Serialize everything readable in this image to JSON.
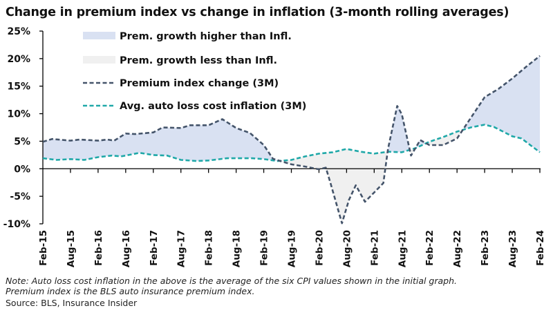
{
  "title": "Change in premium index vs change in inflation (3-month rolling averages)",
  "note": "Note: Auto loss cost inflation in the above is the average of the six CPI values shown in the initial graph. Premium index is the BLS auto insurance premium index.",
  "source": "Source: BLS, Insurance Insider",
  "colors": {
    "premium_line": "#44546a",
    "inflation_line": "#1fa8a8",
    "area_higher": "#d9e1f2",
    "area_lower": "#f0f0f0",
    "axis": "#000000"
  },
  "chart_data": {
    "type": "line",
    "title": "Change in premium index vs change in inflation (3-month rolling averages)",
    "xlabel": "",
    "ylabel": "",
    "ylim": [
      -10,
      25
    ],
    "yticks": [
      25,
      20,
      15,
      10,
      5,
      0,
      -5,
      -10
    ],
    "ytick_labels": [
      "25%",
      "20%",
      "15%",
      "10%",
      "5%",
      "0%",
      "-5%",
      "-10%"
    ],
    "xlim_months": [
      0,
      108
    ],
    "xtick_labels": [
      "Feb-15",
      "Aug-15",
      "Feb-16",
      "Aug-16",
      "Feb-17",
      "Aug-17",
      "Feb-18",
      "Aug-18",
      "Feb-19",
      "Aug-19",
      "Feb-20",
      "Aug-20",
      "Feb-21",
      "Aug-21",
      "Feb-22",
      "Aug-22",
      "Feb-23",
      "Aug-23",
      "Feb-24"
    ],
    "xtick_months": [
      0,
      6,
      12,
      18,
      24,
      30,
      36,
      42,
      48,
      54,
      60,
      66,
      72,
      78,
      84,
      90,
      96,
      102,
      108
    ],
    "grid": false,
    "legend": {
      "position": "top-left",
      "entries": [
        {
          "label": "Prem. growth higher than Infl.",
          "kind": "area",
          "key": "higher"
        },
        {
          "label": "Prem. growth less than Infl.",
          "kind": "area",
          "key": "lower"
        },
        {
          "label": "Premium index change (3M)",
          "kind": "dashed-line",
          "key": "premium"
        },
        {
          "label": "Avg. auto loss cost inflation (3M)",
          "kind": "dashed-line",
          "key": "inflation"
        }
      ]
    },
    "series": [
      {
        "name": "Premium index change (3M)",
        "key": "premium",
        "x_months": [
          0,
          2,
          6,
          8,
          12,
          14,
          15.5,
          18,
          20,
          24,
          26,
          30,
          32,
          36,
          39,
          42,
          45,
          48,
          50,
          54,
          57,
          60,
          61.5,
          62.5,
          65,
          66.5,
          68,
          70,
          72,
          74,
          75,
          77,
          78,
          80,
          82,
          84,
          87,
          90,
          92,
          96,
          99,
          102,
          105,
          108
        ],
        "values": [
          4.9,
          5.4,
          5.1,
          5.3,
          5.1,
          5.3,
          5.1,
          6.4,
          6.3,
          6.6,
          7.5,
          7.4,
          7.9,
          7.9,
          9.0,
          7.4,
          6.5,
          4.3,
          1.8,
          0.8,
          0.4,
          -0.1,
          0.2,
          -2.6,
          -9.9,
          -5.7,
          -3.0,
          -6.0,
          -4.3,
          -2.6,
          3.6,
          11.4,
          9.9,
          2.4,
          5.2,
          4.3,
          4.3,
          5.5,
          8.0,
          13.0,
          14.5,
          16.4,
          18.5,
          20.5
        ]
      },
      {
        "name": "Avg. auto loss cost inflation (3M)",
        "key": "inflation",
        "x_months": [
          0,
          3,
          6,
          9,
          12,
          15,
          17,
          18,
          21,
          24,
          27,
          30,
          33.5,
          36,
          40,
          42,
          45.5,
          48,
          51,
          54,
          57,
          60,
          63,
          66,
          69,
          72,
          75,
          78,
          81,
          84,
          87,
          90,
          93,
          96,
          98,
          102,
          104,
          106,
          108
        ],
        "values": [
          1.9,
          1.6,
          1.75,
          1.6,
          2.1,
          2.4,
          2.25,
          2.4,
          2.9,
          2.5,
          2.4,
          1.6,
          1.4,
          1.5,
          1.9,
          1.9,
          1.9,
          1.75,
          1.4,
          1.6,
          2.25,
          2.75,
          3.0,
          3.6,
          3.1,
          2.75,
          3.1,
          3.0,
          3.75,
          4.9,
          5.75,
          6.75,
          7.5,
          8.0,
          7.6,
          5.9,
          5.5,
          4.25,
          3.0
        ]
      }
    ]
  }
}
